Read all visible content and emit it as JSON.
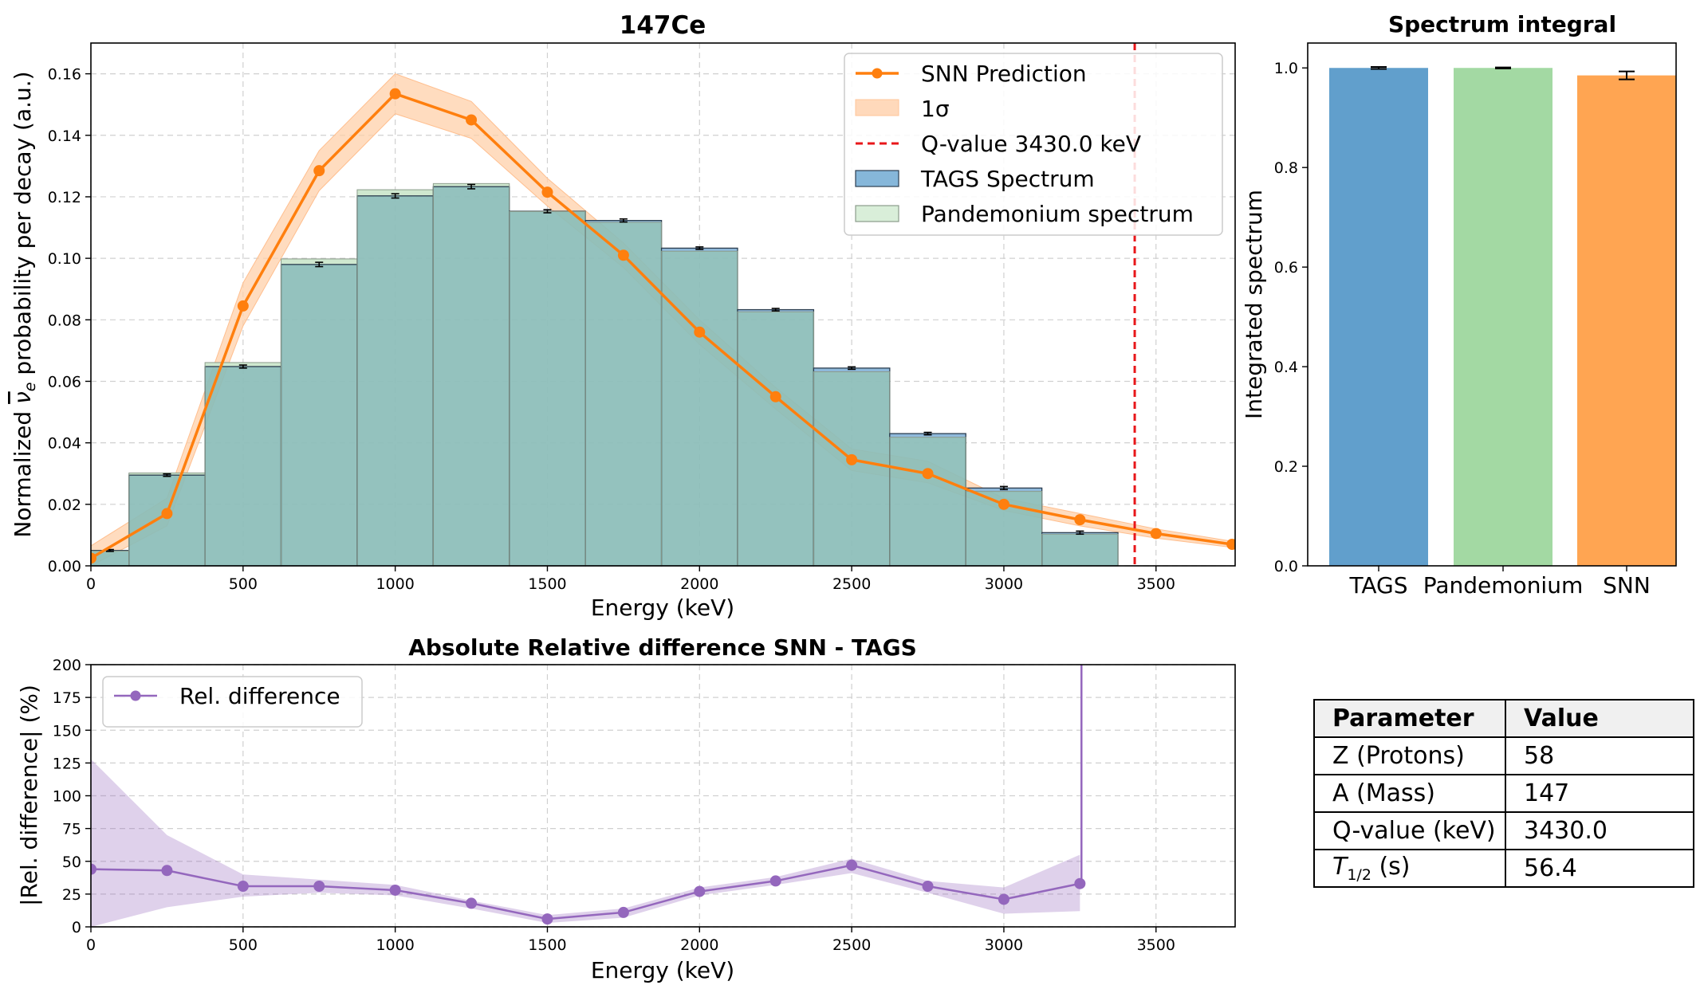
{
  "chart_data": [
    {
      "type": "bar",
      "title": "147Ce",
      "xlabel": "Energy (keV)",
      "ylabel_parts": [
        "Normalized ",
        "ν",
        "e",
        " probability per decay (a.u.)"
      ],
      "xlim": [
        0,
        3760
      ],
      "ylim": [
        0,
        0.17
      ],
      "xticks": [
        0,
        500,
        1000,
        1500,
        2000,
        2500,
        3000,
        3500
      ],
      "yticks": [
        0.0,
        0.02,
        0.04,
        0.06,
        0.08,
        0.1,
        0.12,
        0.14,
        0.16
      ],
      "grid": true,
      "legend_position": "top-right",
      "bin_edges": [
        0,
        125,
        375,
        625,
        875,
        1125,
        1375,
        1625,
        1875,
        2125,
        2375,
        2625,
        2875,
        3125,
        3375
      ],
      "series": [
        {
          "name": "TAGS Spectrum",
          "kind": "hist",
          "values": [
            0.005,
            0.0295,
            0.0648,
            0.098,
            0.1203,
            0.1233,
            0.1153,
            0.1123,
            0.1033,
            0.0833,
            0.0643,
            0.043,
            0.0253,
            0.0108
          ],
          "errors": [
            0.0003,
            0.0004,
            0.0005,
            0.0007,
            0.0007,
            0.0007,
            0.0005,
            0.0005,
            0.0004,
            0.0004,
            0.0004,
            0.0004,
            0.0005,
            0.0005
          ]
        },
        {
          "name": "Pandemonium spectrum",
          "kind": "hist",
          "values": [
            0.0048,
            0.0302,
            0.0661,
            0.0998,
            0.1223,
            0.1243,
            0.1152,
            0.1117,
            0.1023,
            0.0826,
            0.0631,
            0.0418,
            0.0242,
            0.0103
          ]
        },
        {
          "name": "SNN Prediction",
          "kind": "line",
          "x": [
            0,
            250,
            500,
            750,
            1000,
            1250,
            1500,
            1750,
            2000,
            2250,
            2500,
            2750,
            3000,
            3250,
            3500,
            3750
          ],
          "values": [
            0.0025,
            0.017,
            0.0845,
            0.1285,
            0.1535,
            0.145,
            0.1215,
            0.101,
            0.076,
            0.055,
            0.0345,
            0.03,
            0.02,
            0.015,
            0.0105,
            0.007
          ],
          "band_lower": [
            0.0,
            0.013,
            0.078,
            0.122,
            0.147,
            0.139,
            0.117,
            0.097,
            0.072,
            0.051,
            0.031,
            0.027,
            0.018,
            0.013,
            0.009,
            0.006
          ],
          "band_upper": [
            0.0065,
            0.022,
            0.092,
            0.135,
            0.16,
            0.151,
            0.126,
            0.105,
            0.08,
            0.058,
            0.038,
            0.034,
            0.022,
            0.017,
            0.012,
            0.008
          ]
        },
        {
          "name": "1σ",
          "kind": "band"
        },
        {
          "name": "Q-value 3430.0 keV",
          "kind": "vline",
          "x": 3430.0
        }
      ],
      "colors": {
        "tags": "#5b9bd5",
        "pandemonium": "#a6d8a6",
        "overlap": "#8bbdb8",
        "snn": "#ff7f0e",
        "snn_band": "#ffd0aa",
        "qline": "#e8171a"
      }
    },
    {
      "type": "bar",
      "title": "Spectrum integral",
      "ylabel": "Integrated spectrum",
      "categories": [
        "TAGS",
        "Pandemonium",
        "SNN"
      ],
      "values": [
        1.0,
        1.0,
        0.985
      ],
      "errors": [
        0.002,
        0.001,
        0.008
      ],
      "ylim": [
        0,
        1.05
      ],
      "yticks": [
        0.0,
        0.2,
        0.4,
        0.6,
        0.8,
        1.0
      ],
      "colors": [
        "#619fcc",
        "#a3d9a3",
        "#ffa552"
      ]
    },
    {
      "type": "line",
      "title": "Absolute Relative difference SNN - TAGS",
      "xlabel": "Energy (keV)",
      "ylabel": "|Rel. difference| (%)",
      "xlim": [
        0,
        3760
      ],
      "ylim": [
        0,
        200
      ],
      "xticks": [
        0,
        500,
        1000,
        1500,
        2000,
        2500,
        3000,
        3500
      ],
      "yticks": [
        0,
        25,
        50,
        75,
        100,
        125,
        150,
        175,
        200
      ],
      "grid": true,
      "legend_position": "top-left",
      "series": [
        {
          "name": "Rel. difference",
          "x": [
            0,
            250,
            500,
            750,
            1000,
            1250,
            1500,
            1750,
            2000,
            2250,
            2500,
            2750,
            3000,
            3250
          ],
          "values": [
            44,
            43,
            31,
            31,
            28,
            18,
            6,
            11,
            27,
            35,
            47,
            31,
            21,
            33
          ],
          "band_lower": [
            0,
            15,
            23,
            26,
            24,
            14,
            3,
            7,
            24,
            32,
            41,
            26,
            10,
            12
          ],
          "band_upper": [
            128,
            70,
            40,
            36,
            32,
            20,
            9,
            14,
            30,
            38,
            52,
            35,
            30,
            55
          ]
        }
      ],
      "spike_x": 3255,
      "color": "#9467bd"
    }
  ],
  "table": {
    "headers": [
      "Parameter",
      "Value"
    ],
    "rows": [
      {
        "param": "Z (Protons)",
        "value": "58"
      },
      {
        "param": "A (Mass)",
        "value": "147"
      },
      {
        "param": "Q-value (keV)",
        "value": "3430.0"
      },
      {
        "param_main": "T",
        "param_sub": "1/2",
        "param_tail": " (s)",
        "value": "56.4"
      }
    ]
  }
}
